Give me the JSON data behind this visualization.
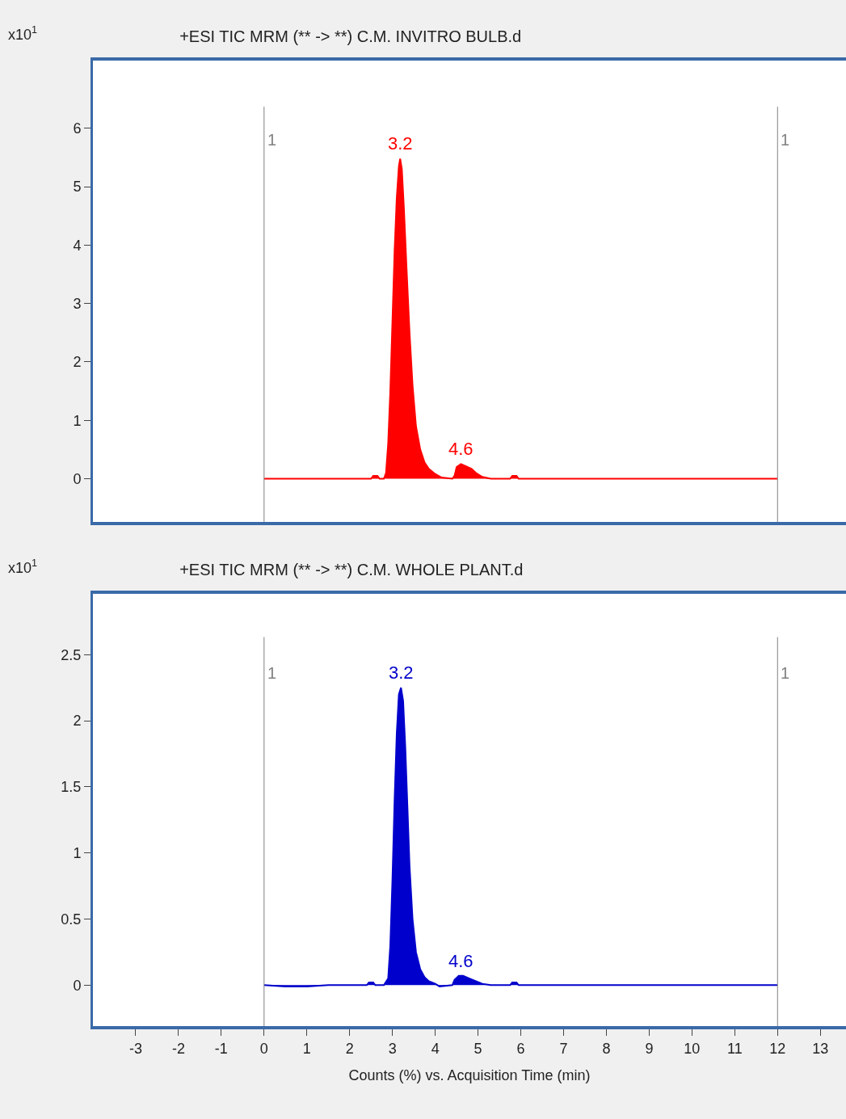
{
  "chart_data": [
    {
      "type": "area",
      "title": "+ESI TIC MRM (** -> **) C.M. INVITRO BULB.d",
      "x": [
        0,
        1,
        2,
        2.5,
        2.55,
        2.65,
        2.7,
        2.8,
        2.85,
        2.9,
        2.95,
        3.0,
        3.05,
        3.1,
        3.15,
        3.18,
        3.22,
        3.27,
        3.33,
        3.4,
        3.47,
        3.55,
        3.65,
        3.75,
        3.85,
        4.0,
        4.15,
        4.4,
        4.45,
        4.5,
        4.6,
        4.7,
        4.85,
        4.95,
        5.1,
        5.3,
        5.75,
        5.8,
        5.9,
        5.95,
        7,
        9,
        12
      ],
      "series": [
        {
          "color": "#ff0000",
          "values": [
            0,
            0,
            0,
            0,
            0.05,
            0.05,
            0,
            0,
            0.1,
            0.6,
            1.5,
            2.7,
            3.9,
            4.8,
            5.35,
            5.48,
            5.3,
            4.6,
            3.6,
            2.5,
            1.6,
            0.9,
            0.5,
            0.28,
            0.17,
            0.08,
            0.02,
            0,
            0.05,
            0.2,
            0.25,
            0.22,
            0.17,
            0.1,
            0.03,
            0,
            0,
            0.05,
            0.05,
            0,
            0,
            0,
            0
          ]
        }
      ],
      "xlim": [
        -4,
        13.6
      ],
      "xticks": [
        -3,
        -2,
        -1,
        0,
        1,
        2,
        3,
        4,
        5,
        6,
        7,
        8,
        9,
        10,
        11,
        12,
        13
      ],
      "ylim": [
        -0.74,
        7.16
      ],
      "yticks": [
        0,
        1,
        2,
        3,
        4,
        5,
        6
      ],
      "tick_labels": "y",
      "ref_lines": [
        {
          "axis": "x",
          "value": 0,
          "color": "#808080"
        },
        {
          "axis": "x",
          "value": 12,
          "color": "#808080"
        }
      ],
      "annotations": [
        "x10$^{1}$",
        {
          "text": "3.2",
          "x": 3.18,
          "y": 5.48
        },
        {
          "text": "4.6",
          "x": 4.6,
          "y": 0.25
        },
        {
          "text": "1",
          "x": 0,
          "y": 5.8
        },
        {
          "text": "1",
          "x": 12,
          "y": 5.8
        }
      ]
    },
    {
      "type": "area",
      "title": "+ESI TIC MRM (** -> **) C.M. WHOLE PLANT.d",
      "xlabel": "Counts (%) vs. Acquisition Time (min)",
      "x": [
        0,
        0.5,
        1,
        1.5,
        2,
        2.4,
        2.45,
        2.55,
        2.6,
        2.8,
        2.9,
        2.95,
        3.0,
        3.05,
        3.1,
        3.15,
        3.2,
        3.25,
        3.3,
        3.35,
        3.4,
        3.47,
        3.55,
        3.65,
        3.75,
        3.85,
        4.0,
        4.1,
        4.4,
        4.45,
        4.55,
        4.65,
        4.8,
        4.95,
        5.1,
        5.3,
        5.75,
        5.8,
        5.9,
        5.95,
        7,
        9,
        12
      ],
      "series": [
        {
          "color": "#0000cc",
          "values": [
            0,
            -0.01,
            -0.01,
            0,
            0,
            0,
            0.02,
            0.02,
            0,
            0,
            0.05,
            0.3,
            0.8,
            1.4,
            1.9,
            2.2,
            2.25,
            2.15,
            1.8,
            1.35,
            0.9,
            0.5,
            0.25,
            0.12,
            0.06,
            0.03,
            0.01,
            -0.01,
            0,
            0.04,
            0.07,
            0.07,
            0.05,
            0.03,
            0.01,
            0,
            0,
            0.02,
            0.02,
            0,
            0,
            0,
            0
          ]
        }
      ],
      "xlim": [
        -4,
        13.6
      ],
      "xticks": [
        -3,
        -2,
        -1,
        0,
        1,
        2,
        3,
        4,
        5,
        6,
        7,
        8,
        9,
        10,
        11,
        12,
        13
      ],
      "ylim": [
        -0.31,
        2.96
      ],
      "yticks": [
        0,
        0.5,
        1,
        1.5,
        2,
        2.5
      ],
      "ref_lines": [
        {
          "axis": "x",
          "value": 0,
          "color": "#808080"
        },
        {
          "axis": "x",
          "value": 12,
          "color": "#808080"
        }
      ],
      "annotations": [
        "x10$^{1}$",
        {
          "text": "3.2",
          "x": 3.2,
          "y": 2.25
        },
        {
          "text": "4.6",
          "x": 4.6,
          "y": 0.07
        },
        {
          "text": "1",
          "x": 0,
          "y": 2.36
        },
        {
          "text": "1",
          "x": 12,
          "y": 2.36
        }
      ]
    }
  ]
}
